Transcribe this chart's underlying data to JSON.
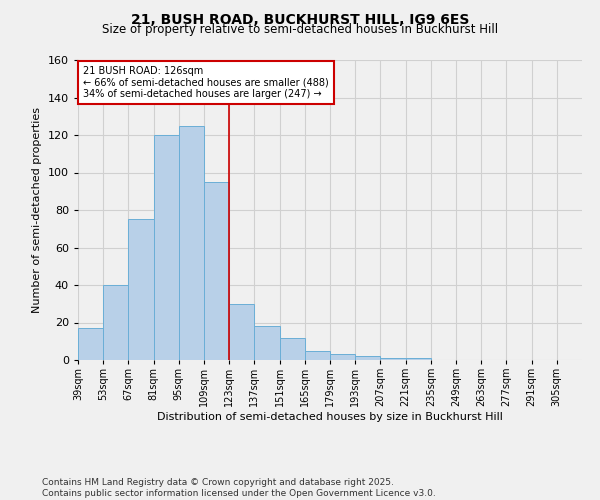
{
  "title_line1": "21, BUSH ROAD, BUCKHURST HILL, IG9 6ES",
  "title_line2": "Size of property relative to semi-detached houses in Buckhurst Hill",
  "xlabel": "Distribution of semi-detached houses by size in Buckhurst Hill",
  "ylabel": "Number of semi-detached properties",
  "footnote_line1": "Contains HM Land Registry data © Crown copyright and database right 2025.",
  "footnote_line2": "Contains public sector information licensed under the Open Government Licence v3.0.",
  "property_label": "21 BUSH ROAD: 126sqm",
  "annotation_line1": "← 66% of semi-detached houses are smaller (488)",
  "annotation_line2": "34% of semi-detached houses are larger (247) →",
  "red_line_x": 123,
  "bin_edges": [
    39,
    53,
    67,
    81,
    95,
    109,
    123,
    137,
    151,
    165,
    179,
    193,
    207,
    221,
    235,
    249,
    263,
    277,
    291,
    305,
    319
  ],
  "bar_heights": [
    17,
    40,
    75,
    120,
    125,
    95,
    30,
    18,
    12,
    5,
    3,
    2,
    1,
    1,
    0,
    0,
    0,
    0,
    0,
    0
  ],
  "bar_color": "#b8d0e8",
  "bar_edge_color": "#6aaed6",
  "red_line_color": "#cc0000",
  "grid_color": "#d0d0d0",
  "background_color": "#f0f0f0",
  "ylim": [
    0,
    160
  ],
  "yticks": [
    0,
    20,
    40,
    60,
    80,
    100,
    120,
    140,
    160
  ],
  "figwidth": 6.0,
  "figheight": 5.0,
  "dpi": 100
}
